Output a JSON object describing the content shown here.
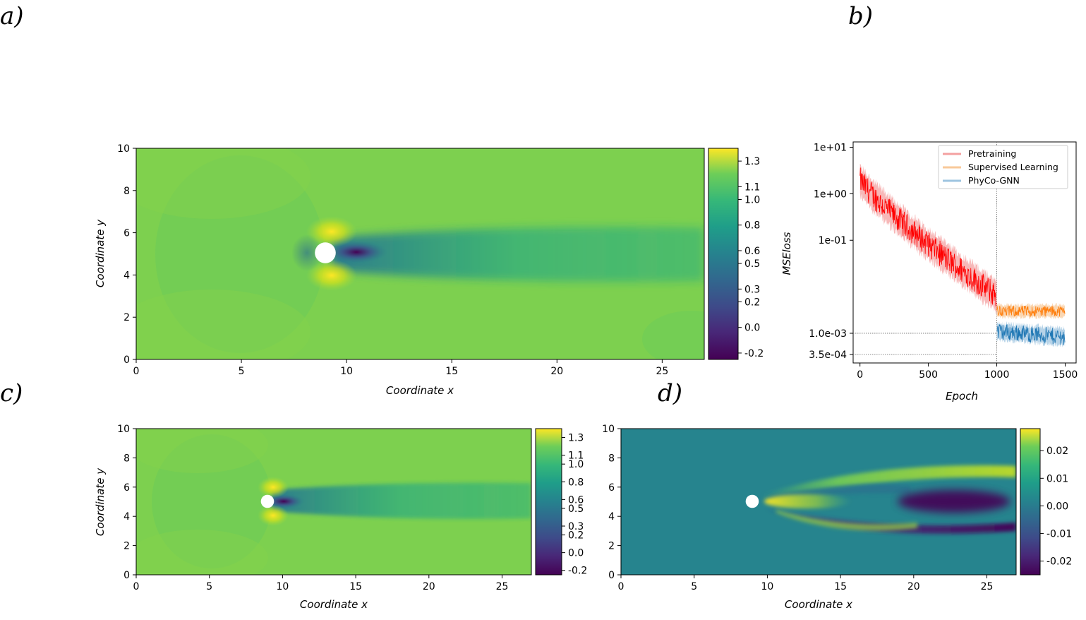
{
  "panel_labels": {
    "a": "a)",
    "b": "b)",
    "c": "c)",
    "d": "d)"
  },
  "chart_data": [
    {
      "id": "a",
      "type": "heatmap",
      "xlabel": "Coordinate x",
      "ylabel": "Coordinate y",
      "xlim": [
        0,
        27
      ],
      "ylim": [
        0,
        10
      ],
      "xticks": [
        "0",
        "5",
        "10",
        "15",
        "20",
        "25"
      ],
      "yticks": [
        "0",
        "2",
        "4",
        "6",
        "8",
        "10"
      ],
      "colormap": "viridis",
      "colorbar_range": [
        -0.25,
        1.4
      ],
      "colorbar_ticks": [
        "-0.2",
        "0.0",
        "0.2",
        "0.3",
        "0.5",
        "0.6",
        "0.8",
        "1.0",
        "1.1",
        "1.3"
      ],
      "cylinder": {
        "cx": 9,
        "cy": 5,
        "r": 0.5
      }
    },
    {
      "id": "b",
      "type": "line",
      "xlabel": "Epoch",
      "ylabel": "MSEloss",
      "xlim": [
        0,
        1500
      ],
      "yscale": "log",
      "xticks": [
        "0",
        "500",
        "1000",
        "1500"
      ],
      "yticks": [
        "3.5e-04",
        "1.0e-03",
        "1e-01",
        "1e+00",
        "1e+01"
      ],
      "vline_x": 1000,
      "hlines": [
        0.001,
        0.00035
      ],
      "legend_position": "top-right",
      "series": [
        {
          "name": "Pretraining",
          "color": "#ff0000",
          "band_color": "#f4a0a0",
          "x_range": [
            0,
            1000
          ]
        },
        {
          "name": "Supervised Learning",
          "color": "#ff7f0e",
          "band_color": "#f8c99a",
          "x_range": [
            1000,
            1500
          ]
        },
        {
          "name": "PhyCo-GNN",
          "color": "#1f77b4",
          "band_color": "#9ec4e0",
          "x_range": [
            1000,
            1500
          ]
        }
      ]
    },
    {
      "id": "c",
      "type": "heatmap",
      "xlabel": "Coordinate x",
      "ylabel": "Coordinate y",
      "xlim": [
        0,
        27
      ],
      "ylim": [
        0,
        10
      ],
      "xticks": [
        "0",
        "5",
        "10",
        "15",
        "20",
        "25"
      ],
      "yticks": [
        "0",
        "2",
        "4",
        "6",
        "8",
        "10"
      ],
      "colormap": "viridis",
      "colorbar_range": [
        -0.25,
        1.4
      ],
      "colorbar_ticks": [
        "-0.2",
        "0.0",
        "0.2",
        "0.3",
        "0.5",
        "0.6",
        "0.8",
        "1.0",
        "1.1",
        "1.3"
      ],
      "cylinder": {
        "cx": 9,
        "cy": 5,
        "r": 0.45
      }
    },
    {
      "id": "d",
      "type": "heatmap",
      "xlabel": "Coordinate x",
      "xlim": [
        0,
        27
      ],
      "ylim": [
        0,
        10
      ],
      "xticks": [
        "0",
        "5",
        "10",
        "15",
        "20",
        "25"
      ],
      "yticks": [
        "0",
        "2",
        "4",
        "6",
        "8",
        "10"
      ],
      "colormap": "viridis",
      "colorbar_range": [
        -0.025,
        0.028
      ],
      "colorbar_ticks": [
        "-0.02",
        "-0.01",
        "0.00",
        "0.01",
        "0.02"
      ],
      "cylinder": {
        "cx": 9,
        "cy": 5,
        "r": 0.45
      }
    }
  ]
}
